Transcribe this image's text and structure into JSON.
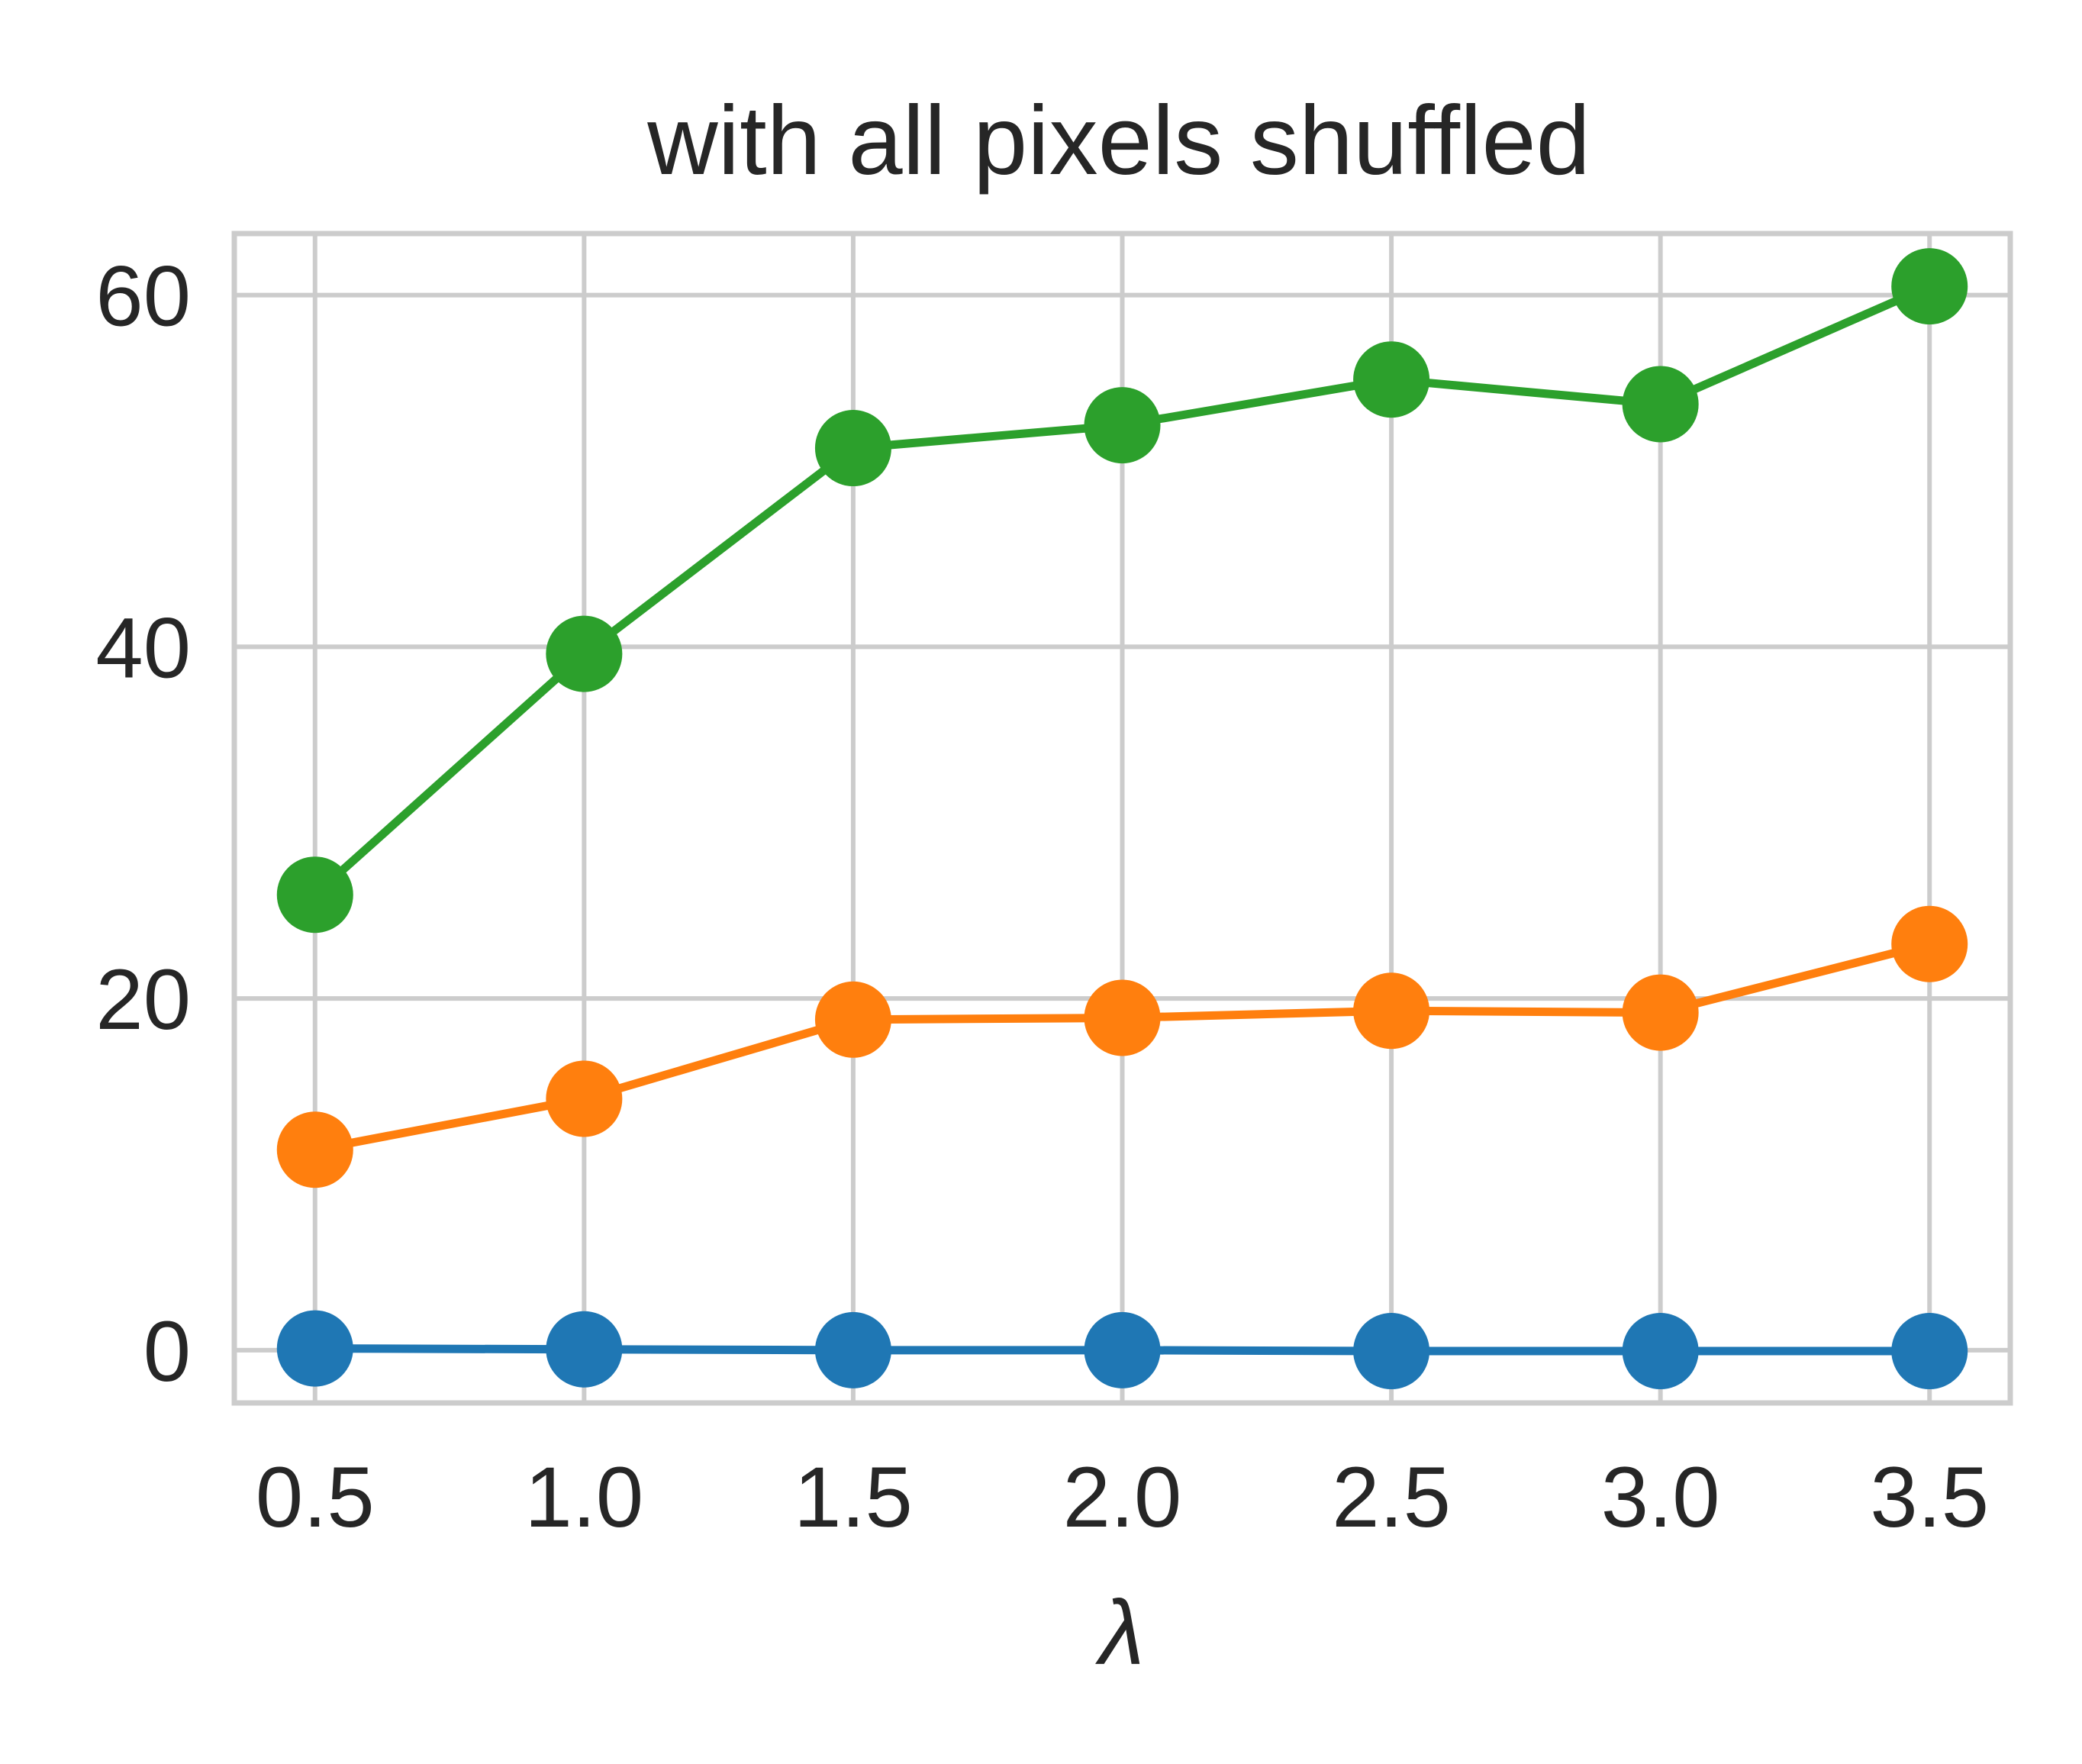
{
  "chart_data": {
    "type": "line",
    "title": "with all pixels shuffled",
    "xlabel": "λ",
    "ylabel": "",
    "x": [
      0.5,
      1.0,
      1.5,
      2.0,
      2.5,
      3.0,
      3.5
    ],
    "x_tick_labels": [
      "0.5",
      "1.0",
      "1.5",
      "2.0",
      "2.5",
      "3.0",
      "3.5"
    ],
    "y_ticks": [
      0,
      20,
      40,
      60
    ],
    "y_tick_labels": [
      "0",
      "20",
      "40",
      "60"
    ],
    "xlim": [
      0.35,
      3.65
    ],
    "ylim": [
      -3,
      63.5
    ],
    "grid": true,
    "legend": "none",
    "colors": {
      "grid": "#cccccc",
      "frame": "#cccccc",
      "text": "#262626"
    },
    "series": [
      {
        "color": "#1f77b4",
        "values": [
          0.1,
          0.05,
          0.0,
          0.0,
          -0.05,
          -0.05,
          -0.05
        ]
      },
      {
        "color": "#ff7f0e",
        "values": [
          11.4,
          14.3,
          18.8,
          18.9,
          19.3,
          19.2,
          23.1
        ]
      },
      {
        "color": "#2ca02c",
        "values": [
          25.9,
          39.6,
          51.3,
          52.6,
          55.2,
          53.8,
          60.5
        ]
      }
    ]
  }
}
